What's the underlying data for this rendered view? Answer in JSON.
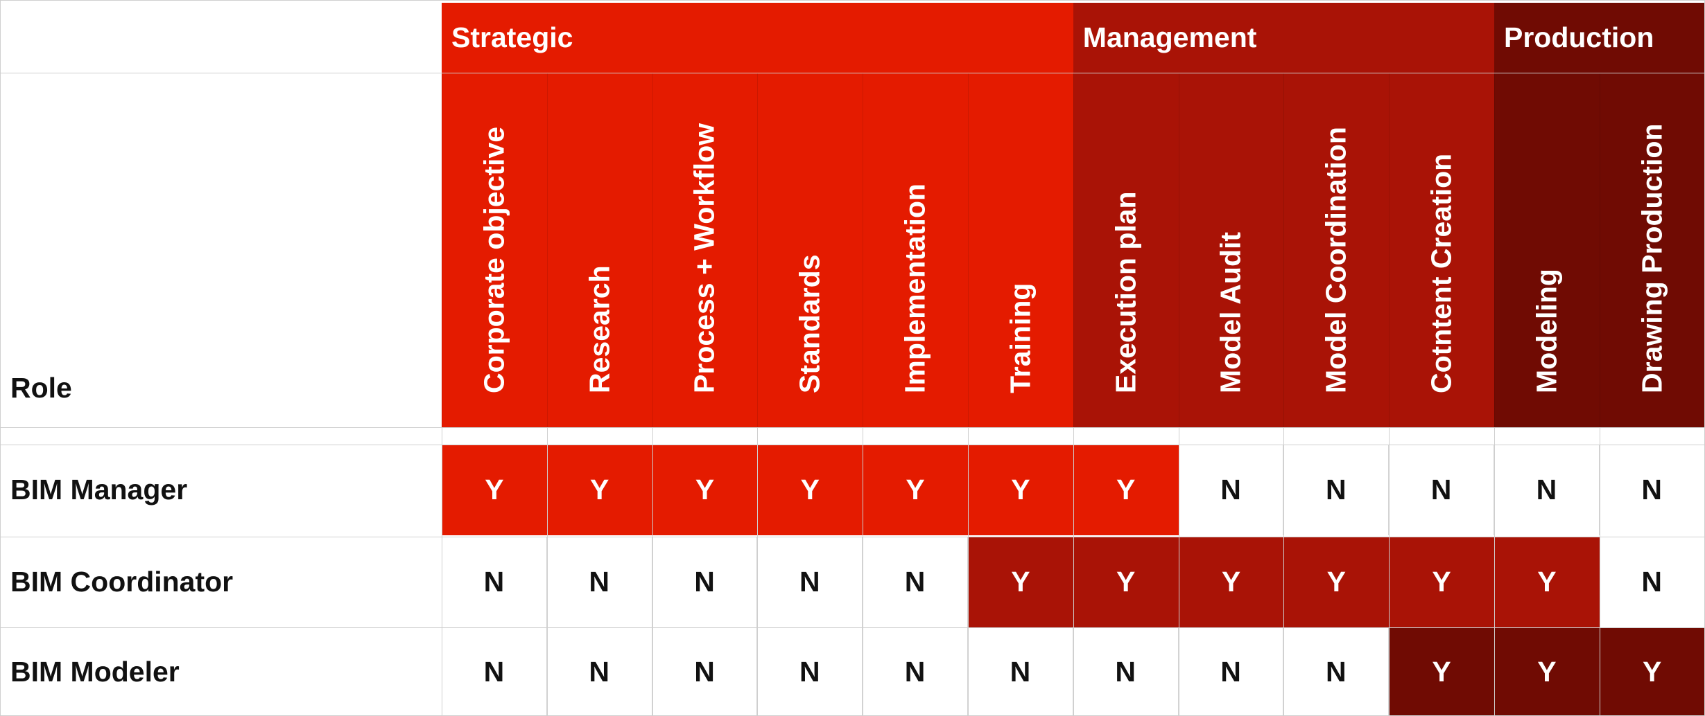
{
  "role_header": "Role",
  "groups": [
    {
      "label": "Strategic",
      "color": "#e41b00",
      "start": 0,
      "span": 6
    },
    {
      "label": "Management",
      "color": "#a91306",
      "start": 6,
      "span": 4
    },
    {
      "label": "Production",
      "color": "#700b03",
      "start": 10,
      "span": 2
    }
  ],
  "columns": [
    "Corporate objective",
    "Research",
    "Process + Workflow",
    "Standards",
    "Implementation",
    "Training",
    "Execution plan",
    "Model Audit",
    "Model Coordination",
    "Cotntent Creation",
    "Modeling",
    "Drawing Production"
  ],
  "rows": [
    {
      "role": "BIM Manager",
      "values": [
        "Y",
        "Y",
        "Y",
        "Y",
        "Y",
        "Y",
        "Y",
        "N",
        "N",
        "N",
        "N",
        "N"
      ],
      "highlight_color": "#e41b00"
    },
    {
      "role": "BIM Coordinator",
      "values": [
        "N",
        "N",
        "N",
        "N",
        "N",
        "Y",
        "Y",
        "Y",
        "Y",
        "Y",
        "Y",
        "N"
      ],
      "highlight_color": "#a91306"
    },
    {
      "role": "BIM Modeler",
      "values": [
        "N",
        "N",
        "N",
        "N",
        "N",
        "N",
        "N",
        "N",
        "N",
        "Y",
        "Y",
        "Y"
      ],
      "highlight_color": "#700b03"
    }
  ]
}
